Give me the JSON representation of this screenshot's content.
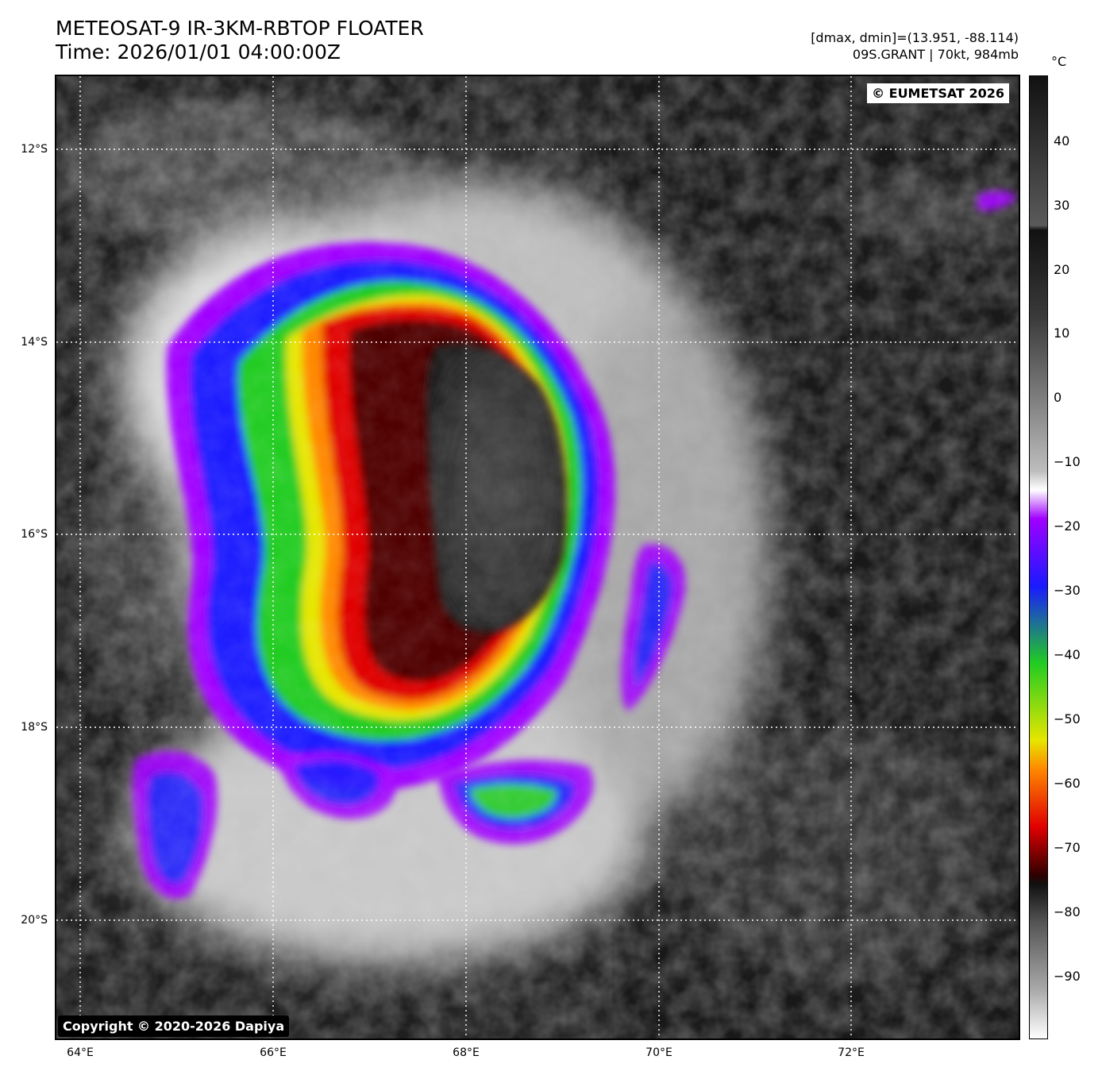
{
  "header": {
    "title_line1": "METEOSAT-9 IR-3KM-RBTOP FLOATER",
    "title_line2": "Time: 2026/01/01 04:00:00Z",
    "range_text": "[dmax, dmin]=(13.951, -88.114)",
    "storm_text": "09S.GRANT | 70kt, 984mb"
  },
  "map": {
    "credit_top": "© EUMETSAT 2026",
    "credit_bottom": "Copyright © 2020-2026 Dapiya",
    "lat_labels": [
      "12°S",
      "14°S",
      "16°S",
      "18°S",
      "20°S"
    ],
    "lon_labels": [
      "64°E",
      "66°E",
      "68°E",
      "70°E",
      "72°E"
    ]
  },
  "colorbar": {
    "unit": "°C",
    "ticks": [
      "40",
      "30",
      "20",
      "10",
      "0",
      "−10",
      "−20",
      "−30",
      "−40",
      "−50",
      "−60",
      "−70",
      "−80",
      "−90"
    ],
    "colors": {
      "warm_top": "#111111",
      "warm_gray": "#5a5a5a",
      "cold_white": "#ffffff",
      "violet": "#a000ff",
      "blue": "#1a1aff",
      "green": "#22cc22",
      "yellow": "#e6e600",
      "orange": "#ff8800",
      "red": "#e00000",
      "dark_red": "#300000"
    }
  }
}
